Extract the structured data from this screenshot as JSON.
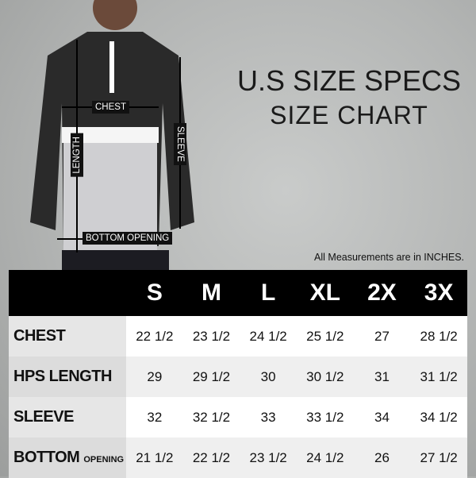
{
  "title_line1": "U.S SIZE SPECS",
  "title_line2": "SIZE CHART",
  "note": "All Measurements are in INCHES.",
  "diagram_labels": {
    "chest": "CHEST",
    "length": "LENGTH",
    "sleeve": "SLEEVE",
    "bottom_opening": "BOTTOM OPENING"
  },
  "table": {
    "sizes": [
      "S",
      "M",
      "L",
      "XL",
      "2X",
      "3X"
    ],
    "rows": [
      {
        "label": "CHEST",
        "label_small": "",
        "values": [
          "22 1/2",
          "23 1/2",
          "24 1/2",
          "25 1/2",
          "27",
          "28 1/2"
        ]
      },
      {
        "label": "HPS LENGTH",
        "label_small": "",
        "values": [
          "29",
          "29 1/2",
          "30",
          "30 1/2",
          "31",
          "31 1/2"
        ]
      },
      {
        "label": "SLEEVE",
        "label_small": "",
        "values": [
          "32",
          "32 1/2",
          "33",
          "33 1/2",
          "34",
          "34 1/2"
        ]
      },
      {
        "label": "BOTTOM",
        "label_small": "OPENING",
        "values": [
          "21 1/2",
          "22 1/2",
          "23 1/2",
          "24 1/2",
          "26",
          "27 1/2"
        ]
      }
    ]
  }
}
